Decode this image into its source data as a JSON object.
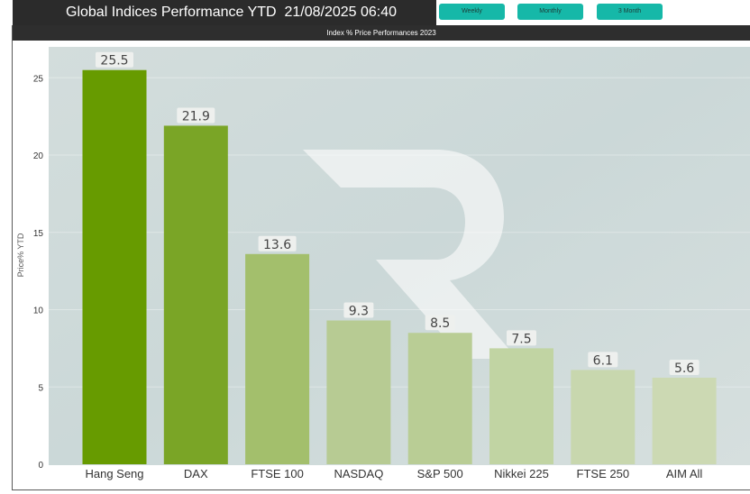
{
  "header": {
    "title": "Global Indices Performance YTD  21/08/2025 06:40",
    "buttons": [
      "Weekly",
      "Monthly",
      "3 Month"
    ]
  },
  "chart_data": {
    "type": "bar",
    "title": "Index % Price Performances 2023",
    "xlabel": "",
    "ylabel": "Price% YTD",
    "ylim": [
      0,
      27
    ],
    "yticks": [
      0,
      5,
      10,
      15,
      20,
      25
    ],
    "categories": [
      "Hang Seng",
      "DAX",
      "FTSE 100",
      "NASDAQ",
      "S&P 500",
      "Nikkei 225",
      "FTSE 250",
      "AIM All"
    ],
    "values": [
      25.5,
      21.9,
      13.6,
      9.3,
      8.5,
      7.5,
      6.1,
      5.6
    ],
    "data_labels": [
      "25.5",
      "21.9",
      "13.6",
      "9.3",
      "8.5",
      "7.5",
      "6.1",
      "5.6"
    ],
    "colors": [
      "#679b00",
      "#7aa526",
      "#a3bf6c",
      "#b7cb93",
      "#b9cd95",
      "#c1d4a3",
      "#c8d7ae",
      "#ccd9b3"
    ],
    "grid": true
  }
}
